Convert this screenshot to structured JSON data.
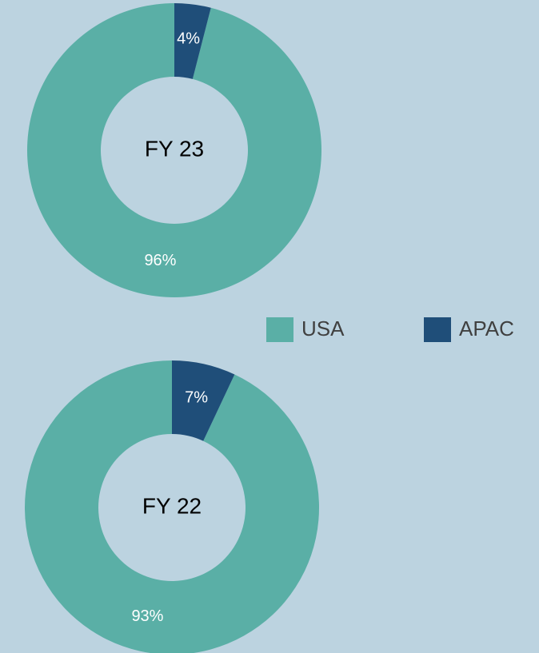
{
  "chart_data": [
    {
      "type": "donut",
      "center_label": "FY 23",
      "categories": [
        "USA",
        "APAC"
      ],
      "values": [
        96,
        4
      ],
      "value_labels": [
        "96%",
        "4%"
      ],
      "colors": [
        "#5aafa6",
        "#1f4e79"
      ]
    },
    {
      "type": "donut",
      "center_label": "FY 22",
      "categories": [
        "USA",
        "APAC"
      ],
      "values": [
        93,
        7
      ],
      "value_labels": [
        "93%",
        "7%"
      ],
      "colors": [
        "#5aafa6",
        "#1f4e79"
      ]
    }
  ]
}
